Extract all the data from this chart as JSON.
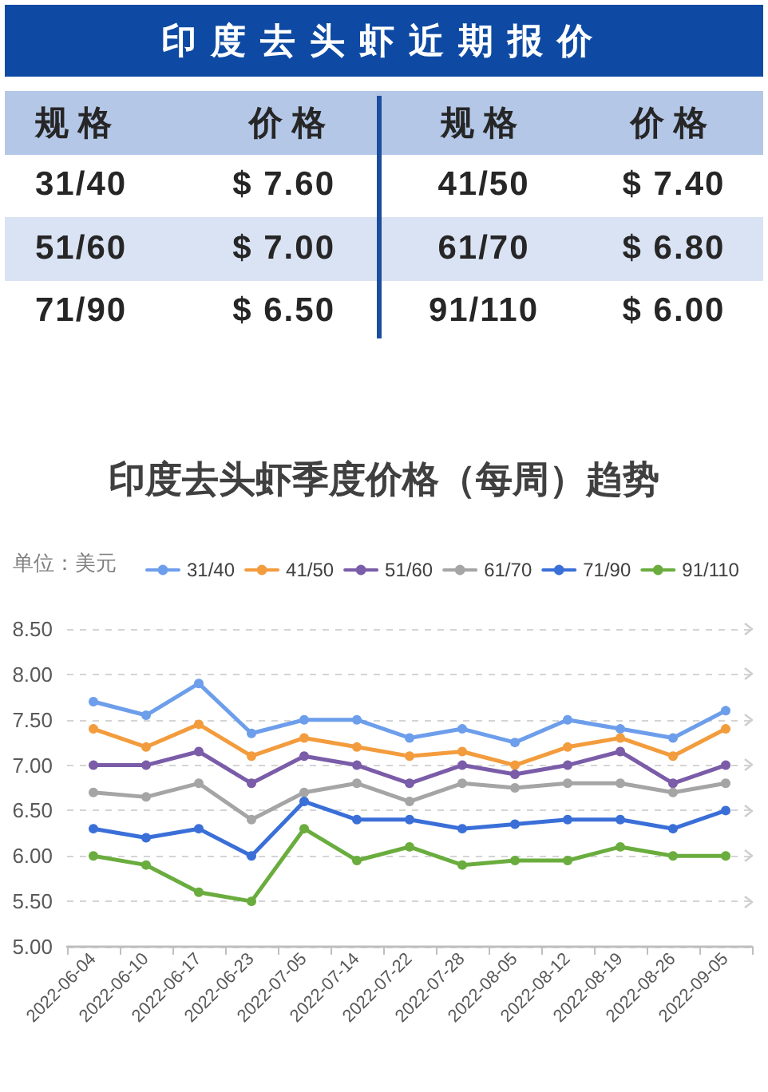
{
  "chart_data": [
    {
      "type": "other",
      "title": "印度去头虾近期报价",
      "annotations": [
        "规格",
        "价格",
        "规格",
        "价格",
        "31/40",
        "$ 7.60",
        "41/50",
        "$ 7.40",
        "51/60",
        "$ 7.00",
        "61/70",
        "$ 6.80",
        "71/90",
        "$ 6.50",
        "91/110",
        "$ 6.00"
      ]
    },
    {
      "type": "line",
      "title": "印度去头虾季度价格（每周）趋势",
      "ylabel": "单位：美元",
      "categories": [
        "2022-06-04",
        "2022-06-10",
        "2022-06-17",
        "2022-06-23",
        "2022-07-05",
        "2022-07-14",
        "2022-07-22",
        "2022-07-28",
        "2022-08-05",
        "2022-08-12",
        "2022-08-19",
        "2022-08-26",
        "2022-09-05"
      ],
      "series": [
        {
          "name": "31/40",
          "color": "#6d9eeb",
          "values": [
            7.7,
            7.55,
            7.9,
            7.35,
            7.5,
            7.5,
            7.3,
            7.4,
            7.25,
            7.5,
            7.4,
            7.3,
            7.6
          ]
        },
        {
          "name": "41/50",
          "color": "#f39c3d",
          "values": [
            7.4,
            7.2,
            7.45,
            7.1,
            7.3,
            7.2,
            7.1,
            7.15,
            7.0,
            7.2,
            7.3,
            7.1,
            7.4
          ]
        },
        {
          "name": "51/60",
          "color": "#7a5ca8",
          "values": [
            7.0,
            7.0,
            7.15,
            6.8,
            7.1,
            7.0,
            6.8,
            7.0,
            6.9,
            7.0,
            7.15,
            6.8,
            7.0
          ]
        },
        {
          "name": "61/70",
          "color": "#a5a5a5",
          "values": [
            6.7,
            6.65,
            6.8,
            6.4,
            6.7,
            6.8,
            6.6,
            6.8,
            6.75,
            6.8,
            6.8,
            6.7,
            6.8
          ]
        },
        {
          "name": "71/90",
          "color": "#3a6fd8",
          "values": [
            6.3,
            6.2,
            6.3,
            6.0,
            6.6,
            6.4,
            6.4,
            6.3,
            6.35,
            6.4,
            6.4,
            6.3,
            6.5
          ]
        },
        {
          "name": "91/110",
          "color": "#6aad3e",
          "values": [
            6.0,
            5.9,
            5.6,
            5.5,
            6.3,
            5.95,
            6.1,
            5.9,
            5.95,
            5.95,
            6.1,
            6.0,
            6.0
          ]
        }
      ],
      "ylim": [
        5,
        8.5
      ],
      "yticks": [
        {
          "value": 5,
          "label": "5.00"
        },
        {
          "value": 5.5,
          "label": "5.50"
        },
        {
          "value": 6,
          "label": "6.00"
        },
        {
          "value": 6.5,
          "label": "6.50"
        },
        {
          "value": 7,
          "label": "7.00"
        },
        {
          "value": 7.5,
          "label": "7.50"
        },
        {
          "value": 8,
          "label": "8.00"
        },
        {
          "value": 8.5,
          "label": "8.50"
        }
      ],
      "grid": "y",
      "legend": "top",
      "marker": "circle",
      "line_style": "solid"
    }
  ]
}
